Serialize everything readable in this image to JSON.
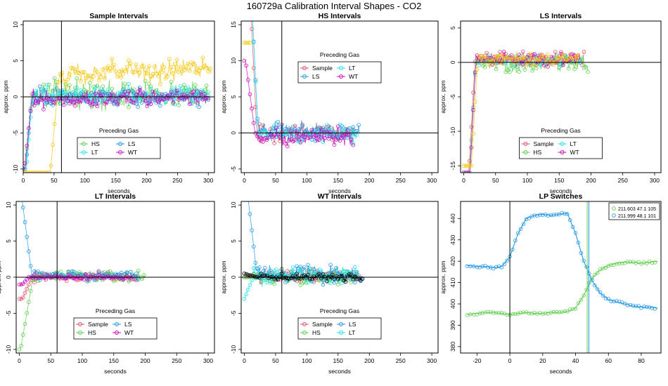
{
  "figure": {
    "title": "160729a   Calibration Interval Shapes - CO2"
  },
  "colors": {
    "Sample": "#DF536B",
    "HS": "#61D04F",
    "LS": "#2297E6",
    "LT": "#28E2E5",
    "WT": "#CD0BBC",
    "yellow": "#F5C710",
    "black": "#000000"
  },
  "chart_data": [
    {
      "type": "scatter",
      "title": "Sample Intervals",
      "xlabel": "seconds",
      "ylabel": "approx. ppm",
      "xlim": [
        0,
        310
      ],
      "ylim": [
        -10.5,
        10.5
      ],
      "xticks": [
        0,
        50,
        100,
        150,
        200,
        250,
        300
      ],
      "yticks": [
        -10,
        -5,
        0,
        5,
        10
      ],
      "vline": 62,
      "hline": 0,
      "legend_title": "Preceding Gas",
      "legend_position": "bottom-center",
      "legend_entries": [
        "HS",
        "LS",
        "LT",
        "WT"
      ],
      "series": [
        {
          "name": "HS",
          "color_key": "HS",
          "y0": -10,
          "t0": 3,
          "t1": 14,
          "level": 0.3,
          "noise": 1.5,
          "xmax": 300
        },
        {
          "name": "LS",
          "color_key": "LS",
          "y0": -10,
          "t0": 4,
          "t1": 14,
          "level": 0.0,
          "noise": 1.0,
          "xmax": 300
        },
        {
          "name": "LT",
          "color_key": "LT",
          "y0": -10,
          "t0": 5,
          "t1": 15,
          "level": 0.2,
          "noise": 1.0,
          "xmax": 300
        },
        {
          "name": "WT",
          "color_key": "WT",
          "y0": -10,
          "t0": 2,
          "t1": 14,
          "level": -0.3,
          "noise": 0.9,
          "xmax": 300
        },
        {
          "color_key": "yellow",
          "y0": -10.5,
          "t0": 44,
          "t1": 58,
          "level": 3.0,
          "noise": 1.3,
          "xmax": 305,
          "drift": 0.004
        }
      ]
    },
    {
      "type": "scatter",
      "title": "HS Intervals",
      "xlabel": "seconds",
      "ylabel": "approx. ppm",
      "xlim": [
        -5,
        310
      ],
      "ylim": [
        -5.5,
        15.5
      ],
      "xticks": [
        0,
        50,
        100,
        150,
        200,
        250,
        300
      ],
      "yticks": [
        -5,
        0,
        5,
        10,
        15
      ],
      "vline": 60,
      "hline": 0,
      "legend_title": "Preceding Gas",
      "legend_position": "top-center",
      "legend_entries": [
        "Sample",
        "LT",
        "LS",
        "WT"
      ],
      "series": [
        {
          "name": "Sample",
          "color_key": "Sample",
          "y0": 18,
          "t0": 10,
          "t1": 20,
          "level": 0.0,
          "noise": 1.0,
          "xmax": 178
        },
        {
          "name": "LS",
          "color_key": "LS",
          "y0": 18,
          "t0": 12,
          "t1": 22,
          "level": 0.2,
          "noise": 1.0,
          "xmax": 185
        },
        {
          "name": "LT",
          "color_key": "LT",
          "y0": 18,
          "t0": 12,
          "t1": 22,
          "level": -0.2,
          "noise": 0.9,
          "xmax": 180
        },
        {
          "name": "WT",
          "color_key": "WT",
          "y0": 10,
          "t0": 2,
          "t1": 18,
          "level": -0.6,
          "noise": 1.0,
          "xmax": 175
        },
        {
          "color_key": "yellow",
          "y0": 12.5,
          "t0": 0,
          "t1": 10,
          "level": 12.5,
          "noise": 0.3,
          "xmax": 9
        }
      ]
    },
    {
      "type": "scatter",
      "title": "LS Intervals",
      "xlabel": "seconds",
      "ylabel": "approx. ppm",
      "xlim": [
        -5,
        310
      ],
      "ylim": [
        -16,
        6
      ],
      "xticks": [
        0,
        50,
        100,
        150,
        200,
        250,
        300
      ],
      "yticks": [
        -15,
        -10,
        -5,
        0,
        5
      ],
      "vline": null,
      "hline": 0,
      "legend_title": "Preceding Gas",
      "legend_position": "bottom-center",
      "legend_entries": [
        "Sample",
        "LT",
        "HS",
        "WT"
      ],
      "series": [
        {
          "name": "Sample",
          "color_key": "Sample",
          "y0": -16,
          "t0": 8,
          "t1": 18,
          "level": 0.6,
          "noise": 0.8,
          "xmax": 190
        },
        {
          "name": "HS",
          "color_key": "HS",
          "y0": -16,
          "t0": 9,
          "t1": 19,
          "level": -0.2,
          "noise": 0.9,
          "xmax": 195
        },
        {
          "name": "LT",
          "color_key": "LT",
          "y0": -16,
          "t0": 10,
          "t1": 19,
          "level": 0.3,
          "noise": 0.7,
          "xmax": 185
        },
        {
          "name": "WT",
          "color_key": "WT",
          "y0": -16,
          "t0": 10,
          "t1": 19,
          "level": 0.4,
          "noise": 0.7,
          "xmax": 180
        },
        {
          "color_key": "yellow",
          "y0": -15,
          "t0": 12,
          "t1": 22,
          "level": 0.5,
          "noise": 0.7,
          "xmax": 180
        }
      ]
    },
    {
      "type": "scatter",
      "title": "LT Intervals",
      "xlabel": "seconds",
      "ylabel": "approx. ppm",
      "xlim": [
        -5,
        310
      ],
      "ylim": [
        -10.5,
        10.5
      ],
      "xticks": [
        0,
        50,
        100,
        150,
        200,
        250,
        300
      ],
      "yticks": [
        -10,
        -5,
        0,
        5,
        10
      ],
      "vline": 60,
      "hline": 0,
      "legend_title": "Preceding Gas",
      "legend_position": "bottom-center",
      "legend_entries": [
        "Sample",
        "LS",
        "HS",
        "WT"
      ],
      "series": [
        {
          "name": "Sample",
          "color_key": "Sample",
          "y0": -3,
          "t0": 5,
          "t1": 20,
          "level": 0.0,
          "noise": 0.5,
          "xmax": 190
        },
        {
          "name": "HS",
          "color_key": "HS",
          "y0": -10,
          "t0": 2,
          "t1": 22,
          "level": 0.1,
          "noise": 0.6,
          "xmax": 200
        },
        {
          "name": "LS",
          "color_key": "LS",
          "y0": 11,
          "t0": 4,
          "t1": 20,
          "level": 0.2,
          "noise": 0.6,
          "xmax": 190
        },
        {
          "name": "WT",
          "color_key": "WT",
          "y0": -1,
          "t0": 5,
          "t1": 15,
          "level": 0.0,
          "noise": 0.3,
          "xmax": 180
        }
      ]
    },
    {
      "type": "scatter",
      "title": "WT Intervals",
      "xlabel": "seconds",
      "ylabel": "approx. ppm",
      "xlim": [
        -5,
        310
      ],
      "ylim": [
        -10.5,
        10.5
      ],
      "xticks": [
        0,
        50,
        100,
        150,
        200,
        250,
        300
      ],
      "yticks": [
        -10,
        -5,
        0,
        5,
        10
      ],
      "vline": 60,
      "hline": 0,
      "legend_title": "Preceding Gas",
      "legend_position": "bottom-center",
      "legend_entries": [
        "Sample",
        "LS",
        "HS",
        "LT"
      ],
      "series": [
        {
          "name": "Sample",
          "color_key": "Sample",
          "y0": 0,
          "t0": 5,
          "t1": 15,
          "level": 0.3,
          "noise": 0.8,
          "xmax": 185
        },
        {
          "name": "HS",
          "color_key": "HS",
          "y0": 0,
          "t0": 5,
          "t1": 15,
          "level": 0.1,
          "noise": 0.9,
          "xmax": 182
        },
        {
          "name": "LS",
          "color_key": "LS",
          "y0": 11,
          "t0": 6,
          "t1": 20,
          "level": 0.5,
          "noise": 0.9,
          "xmax": 190
        },
        {
          "name": "LT",
          "color_key": "LT",
          "y0": -3,
          "t0": 0,
          "t1": 15,
          "level": 0.2,
          "noise": 1.0,
          "xmax": 180
        },
        {
          "color_key": "black",
          "y0": 0.5,
          "t0": 0,
          "t1": 20,
          "level": 0.0,
          "noise": 0.4,
          "xmax": 190
        }
      ]
    },
    {
      "type": "line",
      "title": "LP Switches",
      "xlabel": "seconds",
      "ylabel": "approx. ppm",
      "xlim": [
        -30,
        92
      ],
      "ylim": [
        377,
        448
      ],
      "xticks": [
        -20,
        0,
        20,
        40,
        60,
        80
      ],
      "yticks": [
        380,
        390,
        400,
        410,
        420,
        430,
        440
      ],
      "vline": 0,
      "legend_position": "top-right",
      "vlines_colored": [
        {
          "x": 47.1,
          "color_key": "HS"
        },
        {
          "x": 48.1,
          "color_key": "LS"
        }
      ],
      "series": [
        {
          "name": "211.603 47.1 105",
          "color_key": "HS",
          "x": [
            -26,
            -20,
            -15,
            -10,
            -5,
            0,
            5,
            10,
            15,
            20,
            25,
            30,
            35,
            40,
            45,
            50,
            55,
            60,
            65,
            70,
            75,
            80,
            85,
            90
          ],
          "y": [
            395,
            395.5,
            396,
            396,
            395.5,
            395,
            395.5,
            396,
            395.5,
            395.5,
            396,
            396,
            396.5,
            398,
            404,
            412,
            416,
            418,
            419,
            419.5,
            419.5,
            419,
            419.5,
            420
          ]
        },
        {
          "name": "211.999 48.1 101",
          "color_key": "LS",
          "x": [
            -26,
            -20,
            -15,
            -10,
            -5,
            0,
            5,
            10,
            15,
            20,
            25,
            30,
            35,
            40,
            45,
            50,
            55,
            60,
            65,
            70,
            75,
            80,
            85,
            90
          ],
          "y": [
            418,
            417.5,
            417.5,
            417,
            417.5,
            422,
            433,
            440,
            441.5,
            442,
            441.5,
            442,
            442.5,
            433,
            420,
            411,
            405,
            402,
            401,
            400,
            399,
            398.5,
            398.5,
            398
          ]
        }
      ]
    }
  ]
}
